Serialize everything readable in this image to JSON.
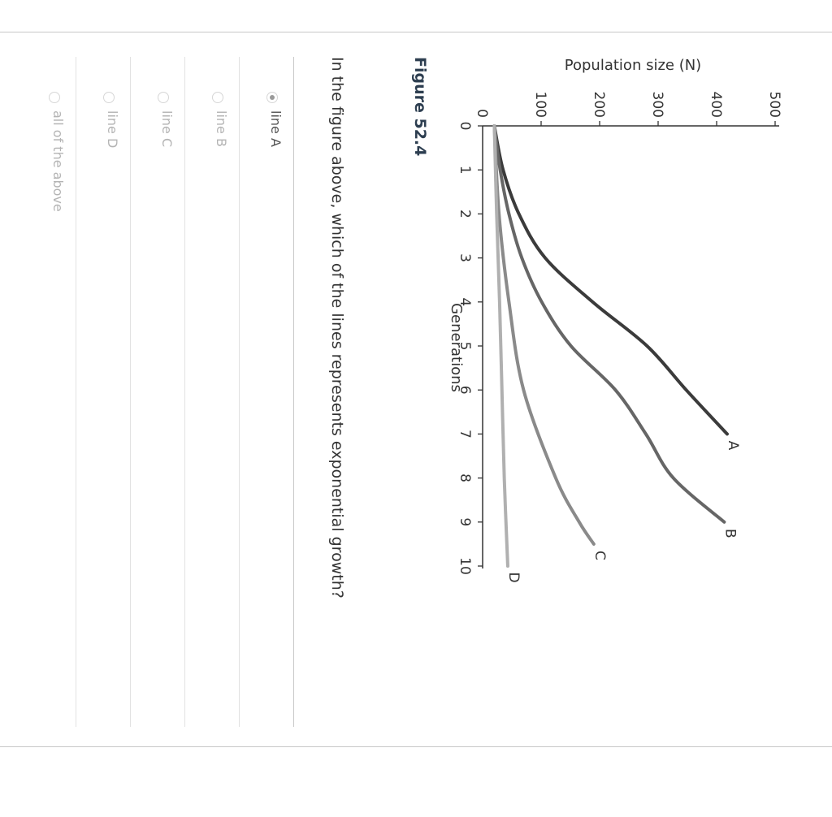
{
  "figure": {
    "title": "Figure 52.4"
  },
  "chart_data": {
    "type": "line",
    "xlabel": "Generations",
    "ylabel": "Population size (N)",
    "xlim": [
      0,
      10
    ],
    "ylim": [
      0,
      500
    ],
    "x_ticks": [
      "0",
      "1",
      "2",
      "3",
      "4",
      "5",
      "6",
      "7",
      "8",
      "9",
      "10"
    ],
    "y_ticks": [
      "0",
      "100",
      "200",
      "300",
      "400",
      "500"
    ],
    "series": [
      {
        "name": "A",
        "color": "#3b3b3b",
        "x": [
          0,
          1,
          2,
          3,
          4,
          5,
          6,
          7
        ],
        "y": [
          20,
          35,
          62,
          107,
          188,
          281,
          348,
          418
        ]
      },
      {
        "name": "B",
        "color": "#666666",
        "x": [
          0,
          1,
          2,
          3,
          4,
          5,
          6,
          7,
          8,
          9
        ],
        "y": [
          20,
          30,
          45,
          67,
          101,
          151,
          227,
          279,
          326,
          413
        ]
      },
      {
        "name": "C",
        "color": "#8a8a8a",
        "x": [
          0,
          2,
          4,
          6,
          8,
          9,
          9.5
        ],
        "y": [
          20,
          28,
          45,
          70,
          125,
          165,
          190
        ]
      },
      {
        "name": "D",
        "color": "#b0b0b0",
        "x": [
          0,
          2,
          4,
          6,
          8,
          10
        ],
        "y": [
          20,
          24,
          29,
          33,
          37,
          43
        ]
      }
    ]
  },
  "question": {
    "text": "In the figure above, which of the lines represents exponential growth?"
  },
  "options": [
    {
      "label": "line A",
      "selected": true
    },
    {
      "label": "line B",
      "selected": false
    },
    {
      "label": "line C",
      "selected": false
    },
    {
      "label": "line D",
      "selected": false
    },
    {
      "label": "all of the above",
      "selected": false
    }
  ]
}
